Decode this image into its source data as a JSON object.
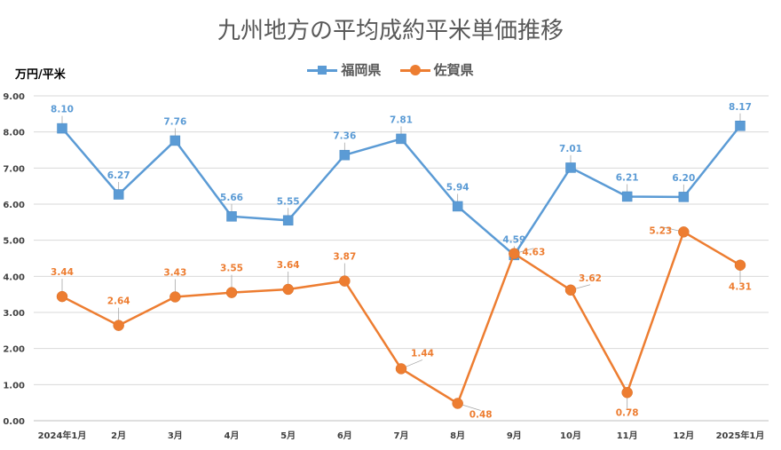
{
  "title": "九州地方の平均成約平米単価推移",
  "y_unit_label": "万円/平米",
  "chart_data": {
    "type": "line",
    "title": "九州地方の平均成約平米単価推移",
    "ylabel": "万円/平米",
    "ylim": [
      0,
      9
    ],
    "yticks": [
      "0.00",
      "1.00",
      "2.00",
      "3.00",
      "4.00",
      "5.00",
      "6.00",
      "7.00",
      "8.00",
      "9.00"
    ],
    "grid": true,
    "legend": "top-center",
    "categories": [
      "2024年1月",
      "2月",
      "3月",
      "4月",
      "5月",
      "6月",
      "7月",
      "8月",
      "9月",
      "10月",
      "11月",
      "12月",
      "2025年1月"
    ],
    "series": [
      {
        "name": "福岡県",
        "color": "#5B9BD5",
        "marker": "square",
        "values": [
          8.1,
          6.27,
          7.76,
          5.66,
          5.55,
          7.36,
          7.81,
          5.94,
          4.59,
          7.01,
          6.21,
          6.2,
          8.17
        ],
        "labels": [
          "8.10",
          "6.27",
          "7.76",
          "5.66",
          "5.55",
          "7.36",
          "7.81",
          "5.94",
          "4.59",
          "7.01",
          "6.21",
          "6.20",
          "8.17"
        ]
      },
      {
        "name": "佐賀県",
        "color": "#ED7D31",
        "marker": "circle",
        "values": [
          3.44,
          2.64,
          3.43,
          3.55,
          3.64,
          3.87,
          1.44,
          0.48,
          4.63,
          3.62,
          0.78,
          5.23,
          4.31
        ],
        "labels": [
          "3.44",
          "2.64",
          "3.43",
          "3.55",
          "3.64",
          "3.87",
          "1.44",
          "0.48",
          "4.63",
          "3.62",
          "0.78",
          "5.23",
          "4.31"
        ]
      }
    ]
  }
}
